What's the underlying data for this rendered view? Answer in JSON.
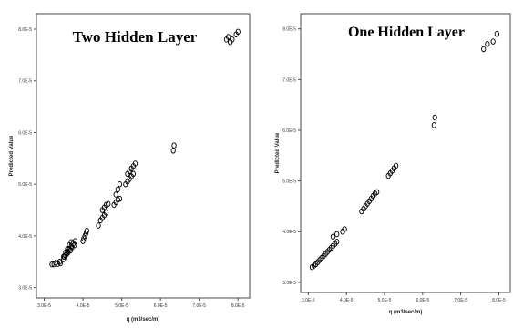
{
  "chart_data": [
    {
      "type": "scatter",
      "title": "Two Hidden Layer",
      "xlabel": "q (m3/sec/m)",
      "ylabel": "Predicted Value",
      "xlim": [
        2.8,
        8.3
      ],
      "ylim": [
        2.8,
        8.3
      ],
      "xticks": [
        3.0,
        4.0,
        5.0,
        6.0,
        7.0,
        8.0
      ],
      "yticks": [
        3.0,
        4.0,
        5.0,
        6.0,
        7.0,
        8.0
      ],
      "xtick_labels": [
        "3.0E-5",
        "4.0E-5",
        "5.0E-5",
        "6.0E-5",
        "7.0E-5",
        "8.0E-5"
      ],
      "ytick_labels": [
        "3.0E-5",
        "4.0E-5",
        "5.0E-5",
        "6.0E-5",
        "7.0E-5",
        "8.0E-5"
      ],
      "grid": false,
      "points": [
        [
          3.2,
          3.45
        ],
        [
          3.25,
          3.45
        ],
        [
          3.3,
          3.48
        ],
        [
          3.35,
          3.46
        ],
        [
          3.4,
          3.5
        ],
        [
          3.42,
          3.47
        ],
        [
          3.5,
          3.55
        ],
        [
          3.52,
          3.6
        ],
        [
          3.55,
          3.62
        ],
        [
          3.58,
          3.65
        ],
        [
          3.6,
          3.7
        ],
        [
          3.62,
          3.68
        ],
        [
          3.65,
          3.75
        ],
        [
          3.68,
          3.72
        ],
        [
          3.7,
          3.8
        ],
        [
          3.72,
          3.78
        ],
        [
          3.75,
          3.85
        ],
        [
          3.78,
          3.82
        ],
        [
          3.8,
          3.9
        ],
        [
          3.5,
          3.6
        ],
        [
          3.55,
          3.68
        ],
        [
          3.6,
          3.75
        ],
        [
          3.65,
          3.82
        ],
        [
          3.7,
          3.88
        ],
        [
          4.0,
          3.9
        ],
        [
          4.02,
          3.95
        ],
        [
          4.05,
          4.0
        ],
        [
          4.08,
          4.05
        ],
        [
          4.1,
          4.1
        ],
        [
          4.4,
          4.2
        ],
        [
          4.45,
          4.3
        ],
        [
          4.5,
          4.35
        ],
        [
          4.55,
          4.4
        ],
        [
          4.6,
          4.45
        ],
        [
          4.5,
          4.5
        ],
        [
          4.55,
          4.55
        ],
        [
          4.6,
          4.6
        ],
        [
          4.65,
          4.62
        ],
        [
          4.8,
          4.6
        ],
        [
          4.85,
          4.65
        ],
        [
          4.9,
          4.7
        ],
        [
          4.95,
          4.72
        ],
        [
          4.85,
          4.8
        ],
        [
          4.9,
          4.9
        ],
        [
          4.95,
          5.0
        ],
        [
          5.1,
          5.0
        ],
        [
          5.15,
          5.05
        ],
        [
          5.2,
          5.1
        ],
        [
          5.25,
          5.15
        ],
        [
          5.3,
          5.2
        ],
        [
          5.2,
          5.25
        ],
        [
          5.25,
          5.3
        ],
        [
          5.3,
          5.35
        ],
        [
          5.35,
          5.4
        ],
        [
          5.15,
          5.2
        ],
        [
          6.33,
          5.65
        ],
        [
          6.35,
          5.75
        ],
        [
          7.7,
          7.8
        ],
        [
          7.75,
          7.85
        ],
        [
          7.8,
          7.75
        ],
        [
          7.85,
          7.8
        ],
        [
          7.95,
          7.9
        ],
        [
          8.0,
          7.95
        ]
      ]
    },
    {
      "type": "scatter",
      "title": "One Hidden Layer",
      "xlabel": "q (m3/sec/m)",
      "ylabel": "Predicted Value",
      "xlim": [
        2.8,
        8.3
      ],
      "ylim": [
        2.8,
        8.3
      ],
      "xticks": [
        3.0,
        4.0,
        5.0,
        6.0,
        7.0,
        8.0
      ],
      "yticks": [
        3.0,
        4.0,
        5.0,
        6.0,
        7.0,
        8.0
      ],
      "xtick_labels": [
        "3.0E-5",
        "4.0E-5",
        "5.0E-5",
        "6.0E-5",
        "7.0E-5",
        "8.0E-5"
      ],
      "ytick_labels": [
        "3.0E-5",
        "4.0E-5",
        "5.0E-5",
        "6.0E-5",
        "7.0E-5",
        "8.0E-5"
      ],
      "grid": false,
      "points": [
        [
          3.1,
          3.3
        ],
        [
          3.15,
          3.33
        ],
        [
          3.2,
          3.36
        ],
        [
          3.25,
          3.4
        ],
        [
          3.3,
          3.44
        ],
        [
          3.35,
          3.48
        ],
        [
          3.4,
          3.52
        ],
        [
          3.45,
          3.56
        ],
        [
          3.5,
          3.6
        ],
        [
          3.55,
          3.64
        ],
        [
          3.6,
          3.68
        ],
        [
          3.65,
          3.72
        ],
        [
          3.7,
          3.76
        ],
        [
          3.75,
          3.8
        ],
        [
          3.65,
          3.9
        ],
        [
          3.75,
          3.95
        ],
        [
          3.9,
          4.0
        ],
        [
          3.95,
          4.05
        ],
        [
          4.4,
          4.4
        ],
        [
          4.45,
          4.45
        ],
        [
          4.5,
          4.5
        ],
        [
          4.55,
          4.55
        ],
        [
          4.6,
          4.6
        ],
        [
          4.65,
          4.65
        ],
        [
          4.7,
          4.7
        ],
        [
          4.75,
          4.75
        ],
        [
          4.8,
          4.78
        ],
        [
          5.1,
          5.1
        ],
        [
          5.15,
          5.15
        ],
        [
          5.2,
          5.2
        ],
        [
          5.25,
          5.25
        ],
        [
          5.3,
          5.3
        ],
        [
          6.3,
          6.1
        ],
        [
          6.32,
          6.25
        ],
        [
          7.6,
          7.6
        ],
        [
          7.7,
          7.7
        ],
        [
          7.85,
          7.75
        ],
        [
          7.95,
          7.9
        ]
      ]
    }
  ]
}
